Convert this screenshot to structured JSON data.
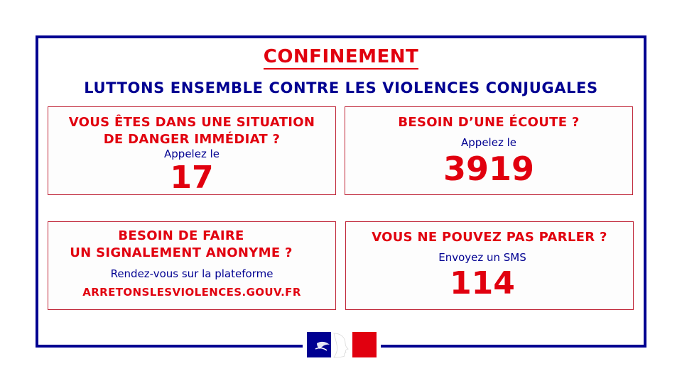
{
  "header": {
    "title": "CONFINEMENT",
    "subtitle": "LUTTONS ENSEMBLE CONTRE LES VIOLENCES CONJUGALES"
  },
  "cards": {
    "danger": {
      "heading_line1": "VOUS ÊTES DANS UNE SITUATION",
      "heading_line2": "DE DANGER IMMÉDIAT ?",
      "instruction": "Appelez le",
      "number": "17"
    },
    "listening": {
      "heading": "BESOIN D’UNE ÉCOUTE ?",
      "instruction": "Appelez le",
      "number": "3919"
    },
    "report": {
      "heading_line1": "BESOIN DE FAIRE",
      "heading_line2": "UN SIGNALEMENT ANONYME ?",
      "instruction": "Rendez-vous sur la plateforme",
      "website": "ARRETONSLESVIOLENCES.GOUV.FR"
    },
    "sms": {
      "heading": "VOUS NE POUVEZ PAS PARLER ?",
      "instruction": "Envoyez un SMS",
      "number": "114"
    }
  },
  "colors": {
    "blue": "#000091",
    "red": "#e1000f"
  },
  "logo": {
    "icon": "marianne-logo-icon"
  }
}
